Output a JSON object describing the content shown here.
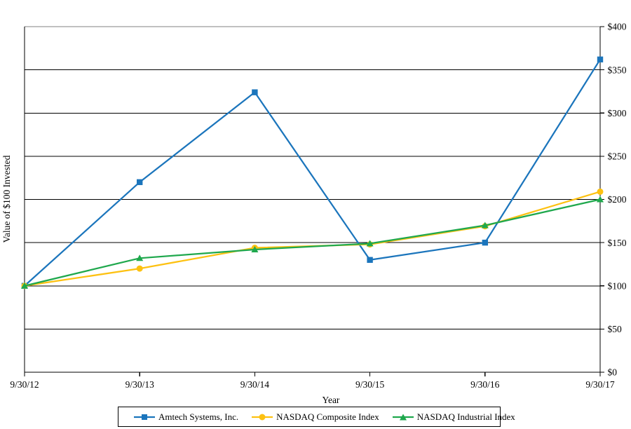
{
  "chart_data": {
    "type": "line",
    "title": "",
    "xlabel": "Year",
    "ylabel": "Value of $100 Invested",
    "categories": [
      "9/30/12",
      "9/30/13",
      "9/30/14",
      "9/30/15",
      "9/30/16",
      "9/30/17"
    ],
    "y_tick_labels": [
      "$0",
      "$50",
      "$100",
      "$150",
      "$200",
      "$250",
      "$300",
      "$350",
      "$400"
    ],
    "ylim": [
      0,
      400
    ],
    "y_tick_step": 50,
    "grid": "horizontal",
    "legend_position": "bottom",
    "series": [
      {
        "name": "Amtech Systems, Inc.",
        "color": "#1B75BC",
        "marker": "square",
        "values": [
          100,
          220,
          324,
          130,
          150,
          362
        ]
      },
      {
        "name": "NASDAQ Composite Index",
        "color": "#FDC111",
        "marker": "circle",
        "values": [
          100,
          120,
          144,
          148,
          169,
          209
        ]
      },
      {
        "name": "NASDAQ Industrial Index",
        "color": "#1FA84D",
        "marker": "triangle",
        "values": [
          100,
          132,
          142,
          149,
          170,
          200
        ]
      }
    ],
    "colors": {
      "gridline": "#000000",
      "top_gridline": "#808080",
      "axis": "#000000",
      "text": "#000000",
      "background": "#FFFFFF"
    }
  }
}
